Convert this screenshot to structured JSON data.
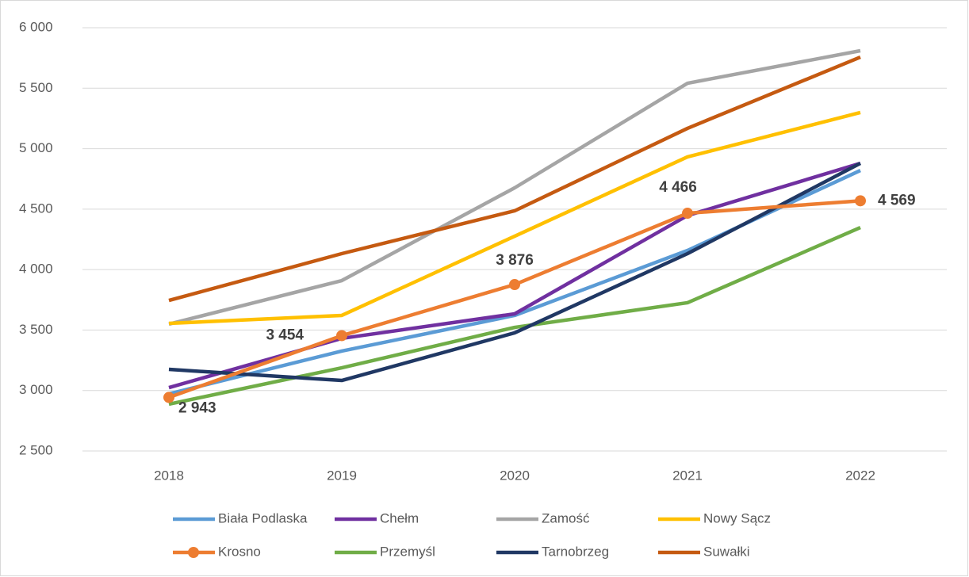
{
  "chart_data": {
    "type": "line",
    "categories": [
      "2018",
      "2019",
      "2020",
      "2021",
      "2022"
    ],
    "ylim": [
      2500,
      6000
    ],
    "yticks": [
      {
        "value": 2500,
        "label": "2 500"
      },
      {
        "value": 3000,
        "label": "3 000"
      },
      {
        "value": 3500,
        "label": "3 500"
      },
      {
        "value": 4000,
        "label": "4 000"
      },
      {
        "value": 4500,
        "label": "4 500"
      },
      {
        "value": 5000,
        "label": "5 000"
      },
      {
        "value": 5500,
        "label": "5 500"
      },
      {
        "value": 6000,
        "label": "6 000"
      }
    ],
    "grid": true,
    "legend": "bottom",
    "series": [
      {
        "name": "Biała Podlaska",
        "color": "#5b9bd5",
        "values": [
          2972,
          3326,
          3621,
          4158,
          4820
        ]
      },
      {
        "name": "Chełm",
        "color": "#7030a0",
        "values": [
          3024,
          3431,
          3634,
          4447,
          4879
        ]
      },
      {
        "name": "Zamość",
        "color": "#a5a5a5",
        "values": [
          3549,
          3909,
          4676,
          5541,
          5810
        ]
      },
      {
        "name": "Nowy Sącz",
        "color": "#ffc000",
        "values": [
          3555,
          3621,
          4276,
          4932,
          5299
        ]
      },
      {
        "name": "Krosno",
        "color": "#ed7d31",
        "values": [
          2943,
          3454,
          3876,
          4466,
          4569
        ],
        "value_labels": [
          "2 943",
          "3 454",
          "3 876",
          "4 466",
          "4 569"
        ],
        "markers": true
      },
      {
        "name": "Przemyśl",
        "color": "#70ad47",
        "values": [
          2887,
          3188,
          3522,
          3726,
          4348
        ]
      },
      {
        "name": "Tarnobrzeg",
        "color": "#203864",
        "values": [
          3175,
          3083,
          3477,
          4132,
          4879
        ]
      },
      {
        "name": "Suwałki",
        "color": "#c55a11",
        "values": [
          3745,
          4132,
          4486,
          5168,
          5757
        ]
      }
    ]
  }
}
